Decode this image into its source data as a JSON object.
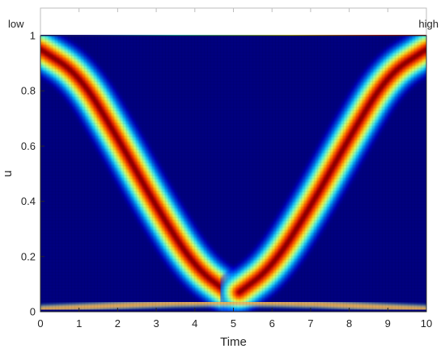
{
  "chart_data": {
    "type": "heatmap",
    "title": "",
    "xlabel": "Time",
    "ylabel": "u",
    "xlim": [
      0,
      10
    ],
    "ylim": [
      0,
      1
    ],
    "x_ticks": [
      "0",
      "1",
      "2",
      "3",
      "4",
      "5",
      "6",
      "7",
      "8",
      "9",
      "10"
    ],
    "y_ticks": [
      "0",
      "0.2",
      "0.4",
      "0.6",
      "0.8",
      "1"
    ],
    "colorbar": {
      "position": "top",
      "low_label": "low",
      "high_label": "high",
      "colormap": "jet"
    },
    "ridges": [
      {
        "name": "",
        "x": [
          0,
          1,
          2,
          3,
          4,
          4.85
        ],
        "y": [
          0.95,
          0.86,
          0.63,
          0.38,
          0.16,
          0.07
        ]
      },
      {
        "name": "",
        "x": [
          5.15,
          6,
          7,
          8,
          9,
          10
        ],
        "y": [
          0.07,
          0.16,
          0.38,
          0.63,
          0.86,
          0.95
        ]
      },
      {
        "name": "",
        "x": [
          0,
          5,
          10
        ],
        "y": [
          0.01,
          0.04,
          0.01
        ]
      }
    ],
    "grid": false,
    "background_color": "#00007f",
    "peak_color": "#7f0000"
  }
}
